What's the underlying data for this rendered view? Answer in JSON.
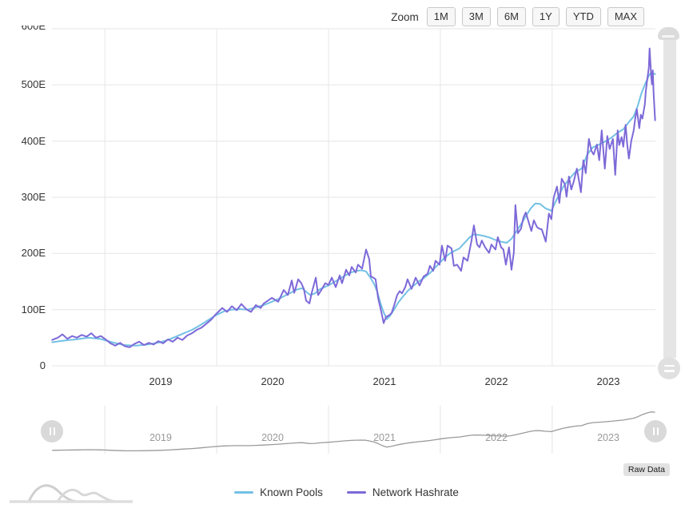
{
  "toolbar": {
    "zoom_label": "Zoom",
    "buttons": [
      "1M",
      "3M",
      "6M",
      "1Y",
      "YTD",
      "MAX"
    ]
  },
  "y_axis": {
    "labels": [
      "600E",
      "500E",
      "400E",
      "300E",
      "200E",
      "100E",
      "0"
    ]
  },
  "x_axis": {
    "labels": [
      "2019",
      "2020",
      "2021",
      "2022",
      "2023"
    ]
  },
  "navigator": {
    "year_labels": [
      "2019",
      "2020",
      "2021",
      "2022",
      "2023"
    ]
  },
  "raw_data": {
    "label": "Raw Data"
  },
  "legend": [
    {
      "label": "Known Pools",
      "color": "#73c0e4"
    },
    {
      "label": "Network Hashrate",
      "color": "#7d69d8"
    }
  ],
  "colors": {
    "grid": "#e6e6e6",
    "navigator_line": "#9a9a9a",
    "navigator_bg": "#f5f5f5",
    "axis_text": "#333333",
    "nav_year_text": "#999999",
    "control_bg": "#f7f7f7",
    "control_border": "#c9c9c9",
    "scrollbar": "#e0e0e0"
  },
  "chart_data": {
    "type": "line",
    "unit": "EH/s (E = exahash per second)",
    "x_unit": "fractional year",
    "xlim": [
      2018.53,
      2023.92
    ],
    "ylim": [
      0,
      600
    ],
    "y_ticks": [
      "0",
      "100E",
      "200E",
      "300E",
      "400E",
      "500E",
      "600E"
    ],
    "x_ticks": [
      2019,
      2020,
      2021,
      2022,
      2023
    ],
    "grid": true,
    "legend_position": "bottom-center",
    "series": [
      {
        "name": "Known Pools",
        "color": "#73c0e4",
        "points": [
          [
            2018.529,
            42
          ],
          [
            2018.636,
            45
          ],
          [
            2018.743,
            47
          ],
          [
            2018.85,
            50
          ],
          [
            2018.957,
            48
          ],
          [
            2019.064,
            42
          ],
          [
            2019.171,
            37
          ],
          [
            2019.279,
            36
          ],
          [
            2019.386,
            38
          ],
          [
            2019.493,
            42
          ],
          [
            2019.564,
            46
          ],
          [
            2019.636,
            52
          ],
          [
            2019.707,
            58
          ],
          [
            2019.779,
            64
          ],
          [
            2019.85,
            72
          ],
          [
            2019.921,
            81
          ],
          [
            2019.993,
            90
          ],
          [
            2020.064,
            97
          ],
          [
            2020.136,
            100
          ],
          [
            2020.207,
            101
          ],
          [
            2020.279,
            100
          ],
          [
            2020.35,
            104
          ],
          [
            2020.421,
            108
          ],
          [
            2020.493,
            114
          ],
          [
            2020.564,
            120
          ],
          [
            2020.621,
            126
          ],
          [
            2020.671,
            131
          ],
          [
            2020.721,
            136
          ],
          [
            2020.764,
            138
          ],
          [
            2020.8,
            132
          ],
          [
            2020.836,
            126
          ],
          [
            2020.879,
            129
          ],
          [
            2020.921,
            136
          ],
          [
            2020.964,
            140
          ],
          [
            2021.0,
            143
          ],
          [
            2021.05,
            149
          ],
          [
            2021.1,
            155
          ],
          [
            2021.15,
            161
          ],
          [
            2021.2,
            166
          ],
          [
            2021.25,
            169
          ],
          [
            2021.293,
            170
          ],
          [
            2021.336,
            168
          ],
          [
            2021.371,
            158
          ],
          [
            2021.407,
            146
          ],
          [
            2021.436,
            132
          ],
          [
            2021.464,
            112
          ],
          [
            2021.493,
            95
          ],
          [
            2021.521,
            83
          ],
          [
            2021.55,
            89
          ],
          [
            2021.586,
            100
          ],
          [
            2021.621,
            112
          ],
          [
            2021.664,
            123
          ],
          [
            2021.707,
            133
          ],
          [
            2021.757,
            142
          ],
          [
            2021.807,
            150
          ],
          [
            2021.857,
            157
          ],
          [
            2021.907,
            165
          ],
          [
            2021.95,
            174
          ],
          [
            2021.993,
            183
          ],
          [
            2022.036,
            192
          ],
          [
            2022.079,
            199
          ],
          [
            2022.121,
            204
          ],
          [
            2022.171,
            209
          ],
          [
            2022.221,
            220
          ],
          [
            2022.264,
            229
          ],
          [
            2022.3,
            234
          ],
          [
            2022.343,
            233
          ],
          [
            2022.393,
            231
          ],
          [
            2022.443,
            228
          ],
          [
            2022.493,
            224
          ],
          [
            2022.543,
            221
          ],
          [
            2022.593,
            219
          ],
          [
            2022.636,
            226
          ],
          [
            2022.679,
            239
          ],
          [
            2022.721,
            252
          ],
          [
            2022.764,
            266
          ],
          [
            2022.807,
            280
          ],
          [
            2022.85,
            289
          ],
          [
            2022.893,
            288
          ],
          [
            2022.936,
            281
          ],
          [
            2022.993,
            276
          ],
          [
            2023.043,
            297
          ],
          [
            2023.1,
            319
          ],
          [
            2023.15,
            332
          ],
          [
            2023.207,
            345
          ],
          [
            2023.264,
            351
          ],
          [
            2023.314,
            376
          ],
          [
            2023.364,
            389
          ],
          [
            2023.421,
            394
          ],
          [
            2023.479,
            400
          ],
          [
            2023.529,
            406
          ],
          [
            2023.579,
            414
          ],
          [
            2023.636,
            421
          ],
          [
            2023.686,
            434
          ],
          [
            2023.729,
            444
          ],
          [
            2023.764,
            462
          ],
          [
            2023.8,
            486
          ],
          [
            2023.836,
            504
          ],
          [
            2023.864,
            516
          ],
          [
            2023.886,
            523
          ],
          [
            2023.921,
            519
          ]
        ]
      },
      {
        "name": "Network Hashrate",
        "color": "#7d69d8",
        "points": [
          [
            2018.529,
            46
          ],
          [
            2018.578,
            50
          ],
          [
            2018.621,
            56
          ],
          [
            2018.664,
            48
          ],
          [
            2018.707,
            53
          ],
          [
            2018.75,
            50
          ],
          [
            2018.793,
            55
          ],
          [
            2018.836,
            52
          ],
          [
            2018.879,
            58
          ],
          [
            2018.921,
            50
          ],
          [
            2018.964,
            53
          ],
          [
            2019.007,
            47
          ],
          [
            2019.05,
            40
          ],
          [
            2019.093,
            36
          ],
          [
            2019.136,
            41
          ],
          [
            2019.179,
            35
          ],
          [
            2019.221,
            33
          ],
          [
            2019.264,
            39
          ],
          [
            2019.307,
            43
          ],
          [
            2019.35,
            37
          ],
          [
            2019.393,
            41
          ],
          [
            2019.436,
            38
          ],
          [
            2019.479,
            44
          ],
          [
            2019.521,
            40
          ],
          [
            2019.564,
            47
          ],
          [
            2019.607,
            43
          ],
          [
            2019.65,
            50
          ],
          [
            2019.693,
            46
          ],
          [
            2019.736,
            54
          ],
          [
            2019.779,
            58
          ],
          [
            2019.821,
            64
          ],
          [
            2019.864,
            68
          ],
          [
            2019.907,
            75
          ],
          [
            2019.95,
            82
          ],
          [
            2019.993,
            92
          ],
          [
            2020.05,
            103
          ],
          [
            2020.093,
            96
          ],
          [
            2020.136,
            106
          ],
          [
            2020.179,
            99
          ],
          [
            2020.221,
            110
          ],
          [
            2020.264,
            101
          ],
          [
            2020.307,
            96
          ],
          [
            2020.35,
            108
          ],
          [
            2020.393,
            103
          ],
          [
            2020.421,
            111
          ],
          [
            2020.493,
            121
          ],
          [
            2020.55,
            114
          ],
          [
            2020.6,
            135
          ],
          [
            2020.636,
            126
          ],
          [
            2020.671,
            152
          ],
          [
            2020.693,
            130
          ],
          [
            2020.729,
            154
          ],
          [
            2020.757,
            147
          ],
          [
            2020.779,
            137
          ],
          [
            2020.8,
            116
          ],
          [
            2020.829,
            111
          ],
          [
            2020.85,
            130
          ],
          [
            2020.886,
            157
          ],
          [
            2020.907,
            126
          ],
          [
            2020.936,
            135
          ],
          [
            2020.971,
            147
          ],
          [
            2021.0,
            144
          ],
          [
            2021.029,
            157
          ],
          [
            2021.064,
            140
          ],
          [
            2021.1,
            161
          ],
          [
            2021.121,
            147
          ],
          [
            2021.157,
            171
          ],
          [
            2021.186,
            161
          ],
          [
            2021.207,
            176
          ],
          [
            2021.243,
            166
          ],
          [
            2021.264,
            180
          ],
          [
            2021.3,
            173
          ],
          [
            2021.336,
            207
          ],
          [
            2021.364,
            190
          ],
          [
            2021.379,
            159
          ],
          [
            2021.4,
            157
          ],
          [
            2021.421,
            154
          ],
          [
            2021.443,
            121
          ],
          [
            2021.471,
            97
          ],
          [
            2021.493,
            76
          ],
          [
            2021.514,
            87
          ],
          [
            2021.543,
            90
          ],
          [
            2021.564,
            94
          ],
          [
            2021.586,
            107
          ],
          [
            2021.614,
            126
          ],
          [
            2021.636,
            133
          ],
          [
            2021.657,
            129
          ],
          [
            2021.686,
            140
          ],
          [
            2021.707,
            154
          ],
          [
            2021.743,
            137
          ],
          [
            2021.779,
            157
          ],
          [
            2021.814,
            143
          ],
          [
            2021.85,
            159
          ],
          [
            2021.886,
            164
          ],
          [
            2021.907,
            178
          ],
          [
            2021.936,
            169
          ],
          [
            2021.957,
            187
          ],
          [
            2021.993,
            180
          ],
          [
            2022.014,
            214
          ],
          [
            2022.043,
            187
          ],
          [
            2022.064,
            214
          ],
          [
            2022.1,
            209
          ],
          [
            2022.121,
            178
          ],
          [
            2022.15,
            180
          ],
          [
            2022.186,
            169
          ],
          [
            2022.207,
            193
          ],
          [
            2022.243,
            187
          ],
          [
            2022.279,
            223
          ],
          [
            2022.3,
            250
          ],
          [
            2022.329,
            216
          ],
          [
            2022.35,
            211
          ],
          [
            2022.371,
            223
          ],
          [
            2022.4,
            211
          ],
          [
            2022.436,
            201
          ],
          [
            2022.457,
            216
          ],
          [
            2022.493,
            207
          ],
          [
            2022.514,
            229
          ],
          [
            2022.543,
            211
          ],
          [
            2022.564,
            207
          ],
          [
            2022.586,
            180
          ],
          [
            2022.614,
            211
          ],
          [
            2022.636,
            171
          ],
          [
            2022.657,
            201
          ],
          [
            2022.671,
            286
          ],
          [
            2022.693,
            236
          ],
          [
            2022.721,
            244
          ],
          [
            2022.743,
            264
          ],
          [
            2022.764,
            273
          ],
          [
            2022.793,
            254
          ],
          [
            2022.814,
            240
          ],
          [
            2022.836,
            259
          ],
          [
            2022.864,
            247
          ],
          [
            2022.886,
            244
          ],
          [
            2022.907,
            243
          ],
          [
            2022.943,
            221
          ],
          [
            2022.971,
            271
          ],
          [
            2022.993,
            261
          ],
          [
            2023.014,
            300
          ],
          [
            2023.043,
            319
          ],
          [
            2023.064,
            290
          ],
          [
            2023.086,
            333
          ],
          [
            2023.114,
            323
          ],
          [
            2023.129,
            301
          ],
          [
            2023.15,
            337
          ],
          [
            2023.171,
            314
          ],
          [
            2023.193,
            328
          ],
          [
            2023.221,
            351
          ],
          [
            2023.243,
            326
          ],
          [
            2023.257,
            309
          ],
          [
            2023.279,
            366
          ],
          [
            2023.3,
            343
          ],
          [
            2023.329,
            404
          ],
          [
            2023.35,
            383
          ],
          [
            2023.371,
            376
          ],
          [
            2023.4,
            394
          ],
          [
            2023.421,
            366
          ],
          [
            2023.443,
            419
          ],
          [
            2023.471,
            351
          ],
          [
            2023.493,
            409
          ],
          [
            2023.514,
            386
          ],
          [
            2023.543,
            404
          ],
          [
            2023.564,
            340
          ],
          [
            2023.586,
            419
          ],
          [
            2023.6,
            393
          ],
          [
            2023.621,
            407
          ],
          [
            2023.636,
            390
          ],
          [
            2023.657,
            429
          ],
          [
            2023.671,
            394
          ],
          [
            2023.686,
            369
          ],
          [
            2023.707,
            400
          ],
          [
            2023.729,
            419
          ],
          [
            2023.743,
            440
          ],
          [
            2023.757,
            457
          ],
          [
            2023.779,
            423
          ],
          [
            2023.793,
            447
          ],
          [
            2023.807,
            440
          ],
          [
            2023.829,
            466
          ],
          [
            2023.836,
            487
          ],
          [
            2023.85,
            509
          ],
          [
            2023.864,
            530
          ],
          [
            2023.871,
            565
          ],
          [
            2023.886,
            514
          ],
          [
            2023.893,
            501
          ],
          [
            2023.9,
            526
          ],
          [
            2023.907,
            486
          ],
          [
            2023.921,
            437
          ]
        ]
      }
    ],
    "navigator_series": {
      "source": "Known Pools",
      "color": "#9a9a9a"
    }
  }
}
